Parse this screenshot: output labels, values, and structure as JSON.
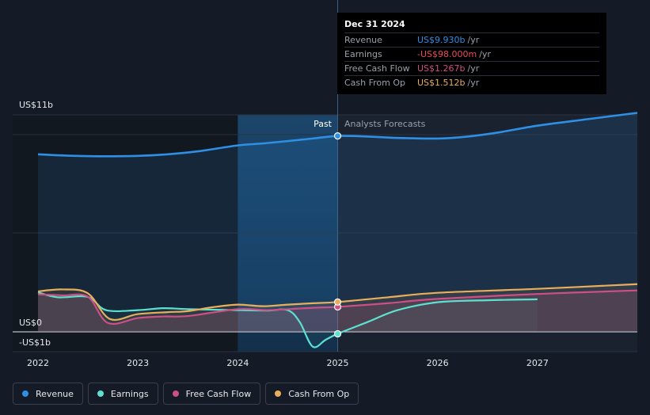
{
  "chart_data": {
    "type": "line",
    "y_axis": {
      "top_label": "US$11b",
      "zero_label": "US$0",
      "bottom_label": "-US$1b",
      "ylim": [
        -1,
        11
      ]
    },
    "x_axis": {
      "ticks": [
        "2022",
        "2023",
        "2024",
        "2025",
        "2026",
        "2027"
      ],
      "xlim": [
        2022,
        2028
      ]
    },
    "past_label": "Past",
    "forecast_label": "Analysts Forecasts",
    "divider_x": 2025.0,
    "series": [
      {
        "name": "Revenue",
        "color": "#2e8fe4",
        "points": [
          [
            2022.0,
            9.0
          ],
          [
            2022.3,
            8.93
          ],
          [
            2022.6,
            8.9
          ],
          [
            2023.0,
            8.92
          ],
          [
            2023.3,
            9.0
          ],
          [
            2023.6,
            9.15
          ],
          [
            2024.0,
            9.45
          ],
          [
            2024.25,
            9.55
          ],
          [
            2024.5,
            9.67
          ],
          [
            2024.75,
            9.8
          ],
          [
            2025.0,
            9.93
          ],
          [
            2025.3,
            9.9
          ],
          [
            2025.6,
            9.83
          ],
          [
            2026.0,
            9.8
          ],
          [
            2026.3,
            9.9
          ],
          [
            2026.6,
            10.1
          ],
          [
            2027.0,
            10.45
          ],
          [
            2027.5,
            10.78
          ],
          [
            2028.0,
            11.1
          ]
        ]
      },
      {
        "name": "Earnings",
        "color": "#5de0cf",
        "points": [
          [
            2022.0,
            2.0
          ],
          [
            2022.2,
            1.75
          ],
          [
            2022.5,
            1.77
          ],
          [
            2022.68,
            1.1
          ],
          [
            2023.0,
            1.1
          ],
          [
            2023.25,
            1.2
          ],
          [
            2023.5,
            1.15
          ],
          [
            2024.0,
            1.1
          ],
          [
            2024.3,
            1.08
          ],
          [
            2024.5,
            1.1
          ],
          [
            2024.62,
            0.5
          ],
          [
            2024.75,
            -0.75
          ],
          [
            2024.88,
            -0.4
          ],
          [
            2025.0,
            -0.098
          ],
          [
            2025.3,
            0.5
          ],
          [
            2025.6,
            1.1
          ],
          [
            2026.0,
            1.5
          ],
          [
            2026.5,
            1.6
          ],
          [
            2027.0,
            1.65
          ]
        ]
      },
      {
        "name": "Free Cash Flow",
        "color": "#cd4f86",
        "points": [
          [
            2022.0,
            1.9
          ],
          [
            2022.25,
            1.85
          ],
          [
            2022.5,
            1.78
          ],
          [
            2022.7,
            0.45
          ],
          [
            2023.0,
            0.7
          ],
          [
            2023.25,
            0.78
          ],
          [
            2023.5,
            0.8
          ],
          [
            2024.0,
            1.15
          ],
          [
            2024.3,
            1.1
          ],
          [
            2024.6,
            1.18
          ],
          [
            2024.8,
            1.23
          ],
          [
            2025.0,
            1.267
          ],
          [
            2025.5,
            1.45
          ],
          [
            2026.0,
            1.67
          ],
          [
            2027.0,
            1.92
          ],
          [
            2028.0,
            2.1
          ]
        ]
      },
      {
        "name": "Cash From Op",
        "color": "#e8ae5c",
        "points": [
          [
            2022.0,
            2.05
          ],
          [
            2022.25,
            2.15
          ],
          [
            2022.5,
            1.95
          ],
          [
            2022.72,
            0.65
          ],
          [
            2023.0,
            0.9
          ],
          [
            2023.3,
            1.0
          ],
          [
            2023.5,
            1.05
          ],
          [
            2023.75,
            1.25
          ],
          [
            2024.0,
            1.38
          ],
          [
            2024.25,
            1.3
          ],
          [
            2024.5,
            1.38
          ],
          [
            2024.75,
            1.45
          ],
          [
            2025.0,
            1.512
          ],
          [
            2025.5,
            1.75
          ],
          [
            2026.0,
            1.98
          ],
          [
            2027.0,
            2.18
          ],
          [
            2028.0,
            2.42
          ]
        ]
      }
    ]
  },
  "tooltip": {
    "date": "Dec 31 2024",
    "unit": "/yr",
    "rows": [
      {
        "name": "Revenue",
        "value": "US$9.930b",
        "color": "#2e8fe4"
      },
      {
        "name": "Earnings",
        "value": "-US$98.000m",
        "color": "#e84b5a"
      },
      {
        "name": "Free Cash Flow",
        "value": "US$1.267b",
        "color": "#cd4f86"
      },
      {
        "name": "Cash From Op",
        "value": "US$1.512b",
        "color": "#e8ae5c"
      }
    ]
  },
  "legend": [
    {
      "name": "Revenue",
      "color": "#2e8fe4"
    },
    {
      "name": "Earnings",
      "color": "#5de0cf"
    },
    {
      "name": "Free Cash Flow",
      "color": "#cd4f86"
    },
    {
      "name": "Cash From Op",
      "color": "#e8ae5c"
    }
  ]
}
